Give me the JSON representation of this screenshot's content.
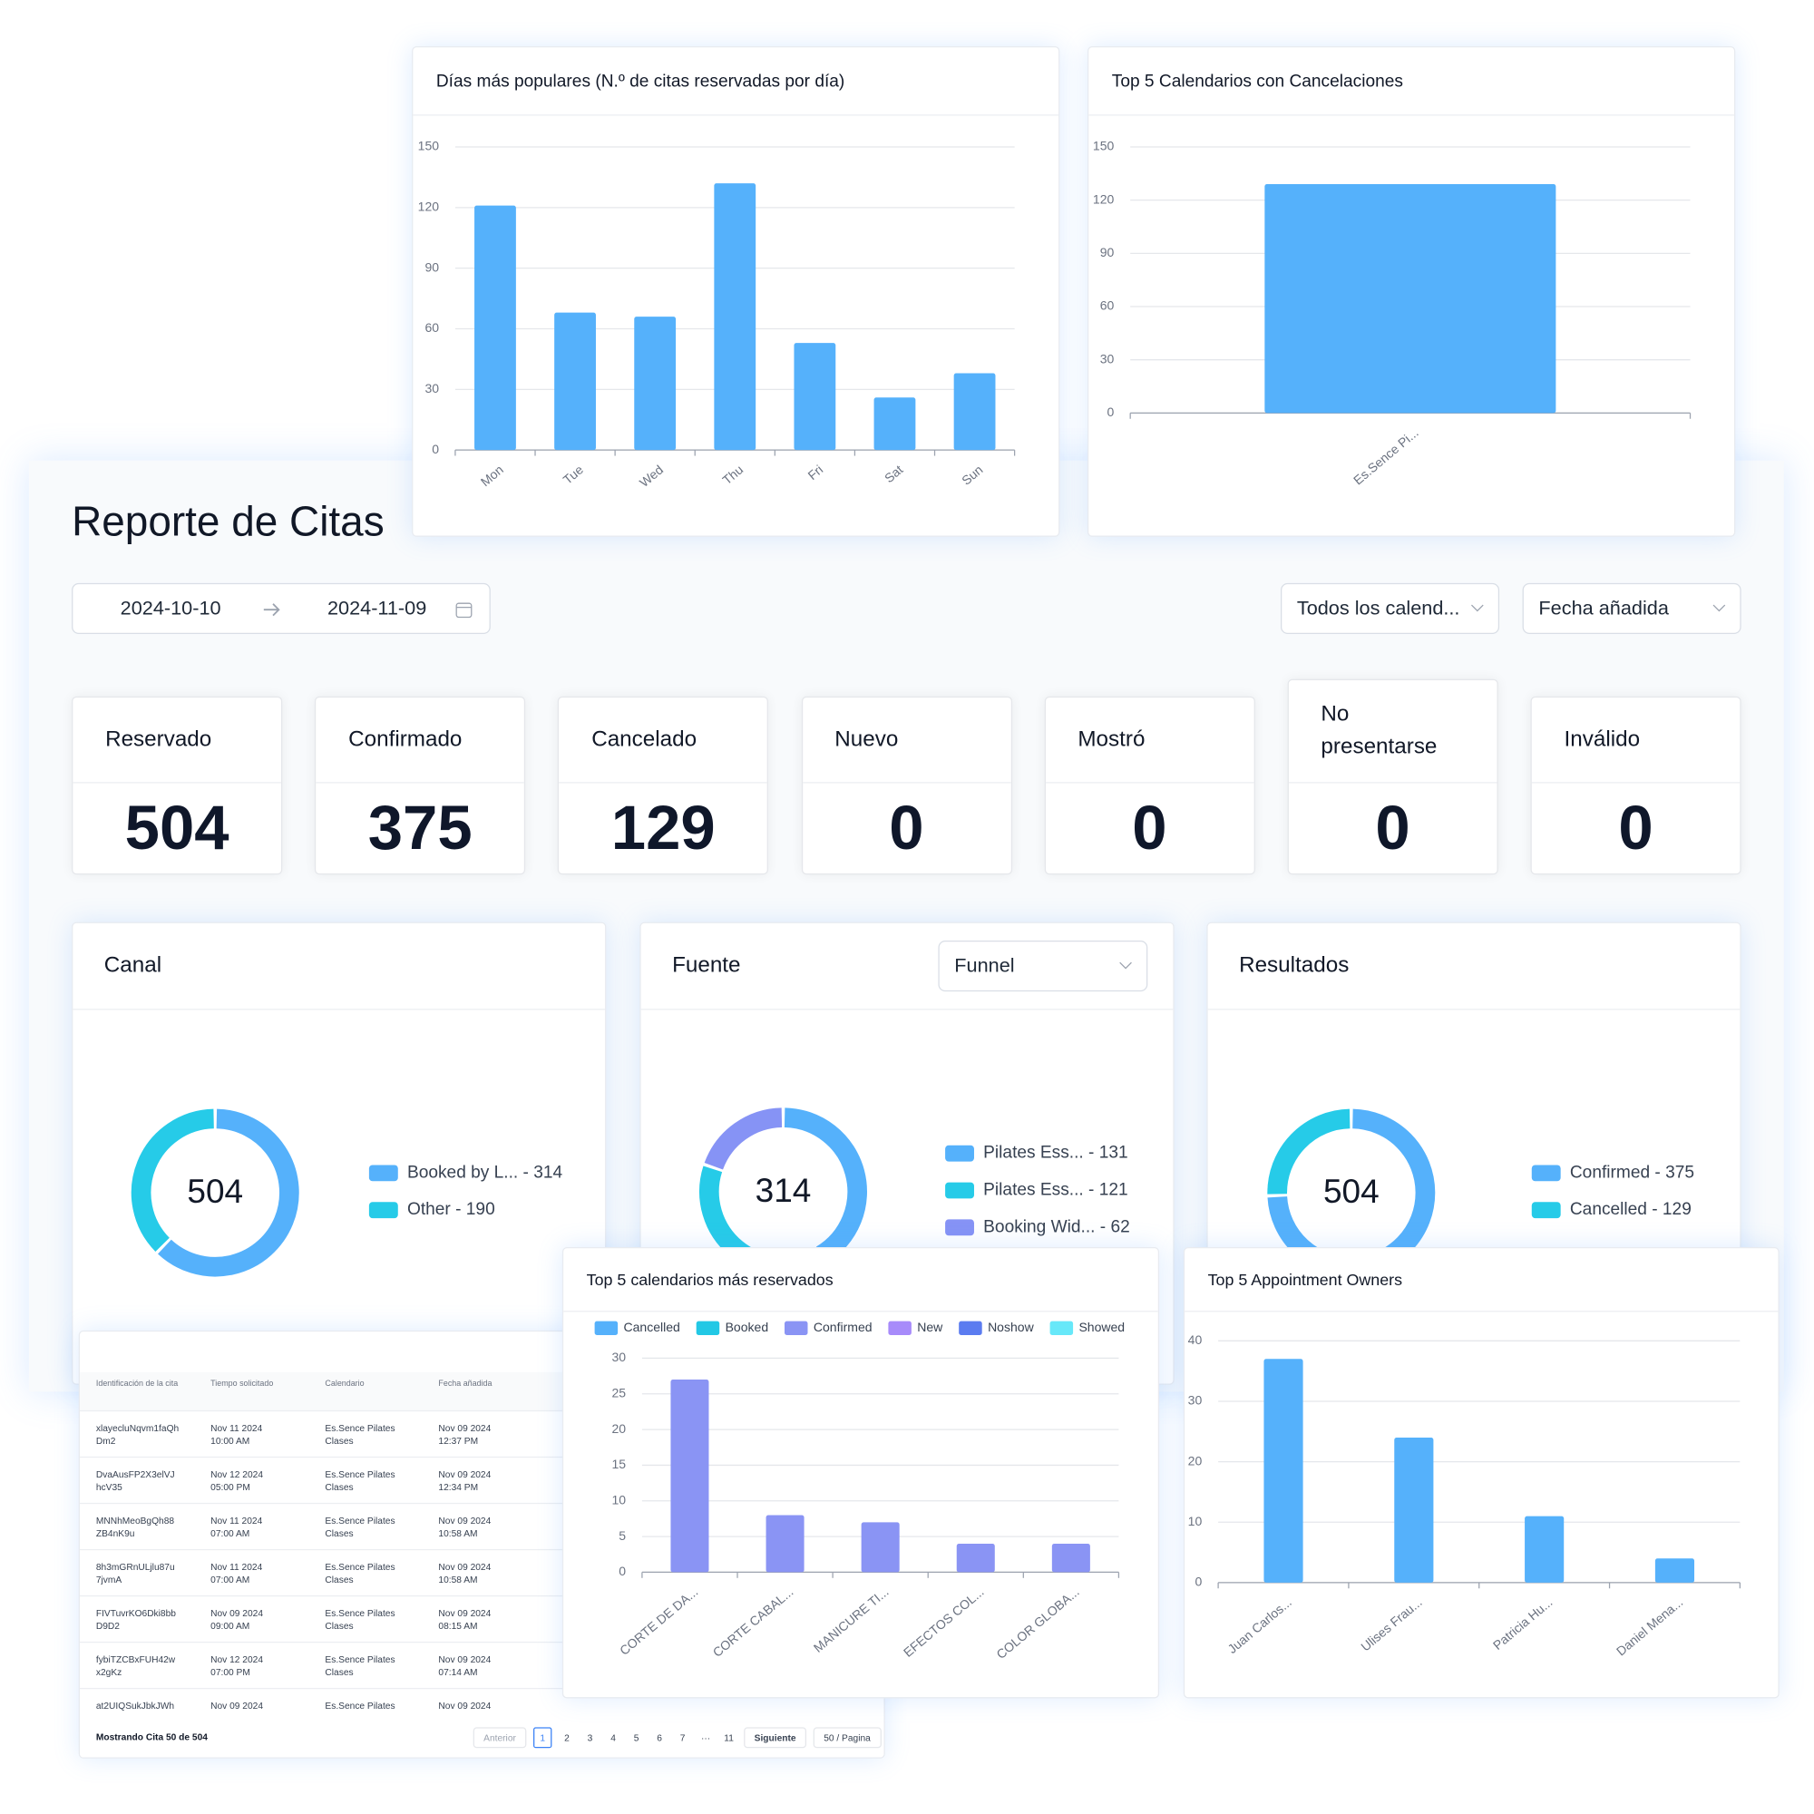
{
  "report": {
    "title": "Reporte de Citas",
    "date_from": "2024-10-10",
    "date_to": "2024-11-09",
    "calendar_filter": "Todos los calend...",
    "date_filter": "Fecha añadida",
    "stats": [
      {
        "label": "Reservado",
        "value": 504
      },
      {
        "label": "Confirmado",
        "value": 375
      },
      {
        "label": "Cancelado",
        "value": 129
      },
      {
        "label": "Nuevo",
        "value": 0
      },
      {
        "label": "Mostró",
        "value": 0
      },
      {
        "label": "No presentarse",
        "value": 0
      },
      {
        "label": "Inválido",
        "value": 0
      }
    ]
  },
  "chart_data": [
    {
      "type": "bar",
      "title": "Días más populares (N.º de citas reservadas por día)",
      "categories": [
        "Mon",
        "Tue",
        "Wed",
        "Thu",
        "Fri",
        "Sat",
        "Sun"
      ],
      "values": [
        121,
        68,
        66,
        132,
        53,
        26,
        38
      ],
      "color": "#55b1fb",
      "ylim": [
        0,
        150
      ],
      "yticks": [
        0,
        30,
        60,
        90,
        120,
        150
      ],
      "grid": true
    },
    {
      "type": "bar",
      "title": "Top 5 Calendarios con Cancelaciones",
      "categories": [
        "Es.Sence Pi..."
      ],
      "values": [
        129
      ],
      "color": "#55b1fb",
      "ylim": [
        0,
        150
      ],
      "yticks": [
        0,
        30,
        60,
        90,
        120,
        150
      ],
      "grid": true
    },
    {
      "type": "donut",
      "title": "Canal",
      "total": 504,
      "labels": [
        "Booked by L... - 314",
        "Other - 190"
      ],
      "values": [
        314,
        190
      ],
      "colors": [
        "#55b1fb",
        "#26cbe8"
      ]
    },
    {
      "type": "donut",
      "title": "Fuente",
      "filter": "Funnel",
      "total": 314,
      "labels": [
        "Pilates Ess... - 131",
        "Pilates Ess... - 121",
        "Booking Wid... - 62"
      ],
      "values": [
        131,
        121,
        62
      ],
      "colors": [
        "#55b1fb",
        "#26cbe8",
        "#8693f5"
      ]
    },
    {
      "type": "donut",
      "title": "Resultados",
      "total": 504,
      "labels": [
        "Confirmed - 375",
        "Cancelled - 129"
      ],
      "values": [
        375,
        129
      ],
      "colors": [
        "#55b1fb",
        "#26cbe8"
      ]
    },
    {
      "type": "bar",
      "title": "Top 5 calendarios más reservados",
      "categories": [
        "CORTE DE DA...",
        "CORTE CABAL...",
        "MANICURE TI...",
        "EFECTOS COL...",
        "COLOR GLOBA..."
      ],
      "series": [
        {
          "name": "Cancelled",
          "color": "#55b1fb",
          "values": [
            0,
            0,
            0,
            0,
            0
          ]
        },
        {
          "name": "Booked",
          "color": "#22c8e5",
          "values": [
            0,
            0,
            0,
            0,
            0
          ]
        },
        {
          "name": "Confirmed",
          "color": "#8a94f4",
          "values": [
            27,
            8,
            7,
            4,
            4
          ]
        },
        {
          "name": "New",
          "color": "#a78bfa",
          "values": [
            0,
            0,
            0,
            0,
            0
          ]
        },
        {
          "name": "Noshow",
          "color": "#5b7cf0",
          "values": [
            0,
            0,
            0,
            0,
            0
          ]
        },
        {
          "name": "Showed",
          "color": "#67e8f9",
          "values": [
            0,
            0,
            0,
            0,
            0
          ]
        }
      ],
      "ylim": [
        0,
        30
      ],
      "yticks": [
        0,
        5,
        10,
        15,
        20,
        25,
        30
      ],
      "grid": true
    },
    {
      "type": "bar",
      "title": "Top 5 Appointment Owners",
      "categories": [
        "Juan Carlos...",
        "Ulises Frau...",
        "Patricia Hu...",
        "Daniel Mena..."
      ],
      "values": [
        37,
        24,
        11,
        4
      ],
      "color": "#55b1fb",
      "ylim": [
        0,
        40
      ],
      "yticks": [
        0,
        10,
        20,
        30,
        40
      ],
      "grid": true
    }
  ],
  "table": {
    "columns": [
      "Identificación de la cita",
      "Tiempo solicitado",
      "Calendario",
      "Fecha añadida"
    ],
    "rows": [
      [
        "xlayecluNqvm1faQhDm2",
        "Nov 11 2024 10:00 AM",
        "Es.Sence Pilates Clases",
        "Nov 09 2024 12:37 PM"
      ],
      [
        "DvaAusFP2X3elVJhcV35",
        "Nov 12 2024 05:00 PM",
        "Es.Sence Pilates Clases",
        "Nov 09 2024 12:34 PM"
      ],
      [
        "MNNhMeoBgQh88ZB4nK9u",
        "Nov 11 2024 07:00 AM",
        "Es.Sence Pilates Clases",
        "Nov 09 2024 10:58 AM"
      ],
      [
        "8h3mGRnULjlu87u7jvmA",
        "Nov 11 2024 07:00 AM",
        "Es.Sence Pilates Clases",
        "Nov 09 2024 10:58 AM"
      ],
      [
        "FIVTuvrKO6Dki8bbD9D2",
        "Nov 09 2024 09:00 AM",
        "Es.Sence Pilates Clases",
        "Nov 09 2024 08:15 AM"
      ],
      [
        "fybiTZCBxFUH42wx2gKz",
        "Nov 12 2024 07:00 PM",
        "Es.Sence Pilates Clases",
        "Nov 09 2024 07:14 AM"
      ],
      [
        "at2UIQSukJbkJWh",
        "Nov 09 2024",
        "Es.Sence Pilates",
        "Nov 09 2024"
      ]
    ],
    "footer": "Mostrando Cita 50 de 504",
    "pagination": {
      "prev": "Anterior",
      "pages": [
        1,
        2,
        3,
        4,
        5,
        6,
        7,
        "···",
        11
      ],
      "next": "Siguiente",
      "page_size": "50 / Pagina"
    }
  }
}
